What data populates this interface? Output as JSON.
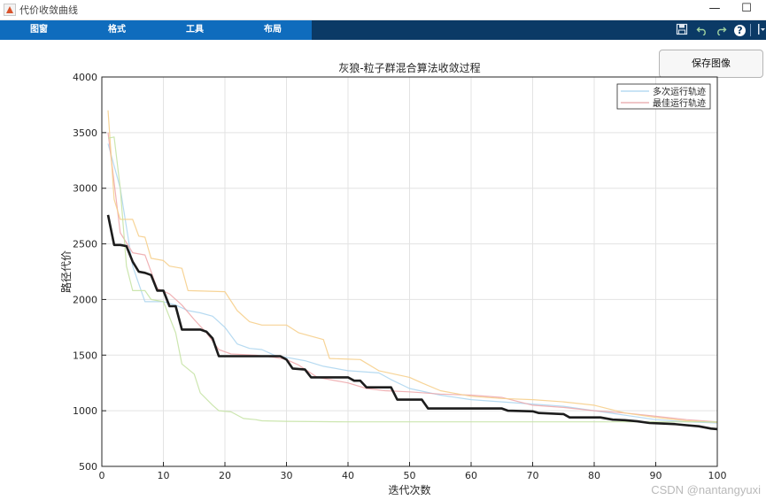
{
  "window": {
    "title": "代价收敛曲线",
    "minimize_glyph": "—",
    "maximize_glyph": "☐"
  },
  "menu": {
    "items": [
      "图窗",
      "格式",
      "工具",
      "布局"
    ]
  },
  "toolbar": {
    "icons": [
      "save-icon",
      "undo-icon",
      "redo-icon",
      "help-icon",
      "dropdown-icon"
    ],
    "help_label": "?"
  },
  "save_button": {
    "label": "保存图像"
  },
  "watermark": "CSDN @nantangyuxi",
  "chart_data": {
    "type": "line",
    "title": "灰狼-粒子群混合算法收敛过程",
    "xlabel": "迭代次数",
    "ylabel": "路径代价",
    "xlim": [
      0,
      100
    ],
    "ylim": [
      500,
      4000
    ],
    "xticks": [
      0,
      10,
      20,
      30,
      40,
      50,
      60,
      70,
      80,
      90,
      100
    ],
    "yticks": [
      500,
      1000,
      1500,
      2000,
      2500,
      3000,
      3500,
      4000
    ],
    "grid": true,
    "legend": {
      "position": "top-right",
      "entries": [
        {
          "label": "多次运行轨迹",
          "color": "#a9d4ef"
        },
        {
          "label": "最佳运行轨迹",
          "color": "#e8a3a8"
        }
      ]
    },
    "series": [
      {
        "color": "#a9d4ef",
        "width": 1.2,
        "opacity": 0.85,
        "points": [
          [
            1,
            3400
          ],
          [
            3,
            3000
          ],
          [
            5,
            2300
          ],
          [
            7,
            1980
          ],
          [
            10,
            1980
          ],
          [
            12,
            1950
          ],
          [
            14,
            1900
          ],
          [
            16,
            1880
          ],
          [
            18,
            1850
          ],
          [
            20,
            1750
          ],
          [
            22,
            1600
          ],
          [
            24,
            1560
          ],
          [
            26,
            1550
          ],
          [
            28,
            1500
          ],
          [
            30,
            1480
          ],
          [
            33,
            1450
          ],
          [
            36,
            1400
          ],
          [
            40,
            1360
          ],
          [
            45,
            1340
          ],
          [
            47,
            1280
          ],
          [
            50,
            1200
          ],
          [
            55,
            1140
          ],
          [
            60,
            1100
          ],
          [
            65,
            1080
          ],
          [
            70,
            1060
          ],
          [
            75,
            1040
          ],
          [
            80,
            1000
          ],
          [
            85,
            960
          ],
          [
            90,
            920
          ],
          [
            95,
            900
          ],
          [
            100,
            890
          ]
        ]
      },
      {
        "color": "#eda5a8",
        "width": 1.2,
        "opacity": 0.85,
        "points": [
          [
            1,
            3500
          ],
          [
            3,
            2600
          ],
          [
            5,
            2420
          ],
          [
            7,
            2400
          ],
          [
            9,
            2100
          ],
          [
            11,
            2050
          ],
          [
            13,
            1950
          ],
          [
            15,
            1820
          ],
          [
            17,
            1700
          ],
          [
            19,
            1550
          ],
          [
            21,
            1510
          ],
          [
            25,
            1500
          ],
          [
            28,
            1480
          ],
          [
            30,
            1460
          ],
          [
            32,
            1410
          ],
          [
            35,
            1300
          ],
          [
            40,
            1250
          ],
          [
            43,
            1200
          ],
          [
            46,
            1180
          ],
          [
            50,
            1170
          ],
          [
            55,
            1150
          ],
          [
            60,
            1140
          ],
          [
            65,
            1120
          ],
          [
            70,
            1050
          ],
          [
            75,
            1030
          ],
          [
            80,
            1000
          ],
          [
            85,
            980
          ],
          [
            90,
            950
          ],
          [
            95,
            920
          ],
          [
            100,
            900
          ]
        ]
      },
      {
        "color": "#f6cf8c",
        "width": 1.2,
        "opacity": 0.9,
        "points": [
          [
            1,
            3700
          ],
          [
            2,
            2900
          ],
          [
            3,
            2720
          ],
          [
            5,
            2720
          ],
          [
            6,
            2570
          ],
          [
            7,
            2560
          ],
          [
            8,
            2370
          ],
          [
            10,
            2350
          ],
          [
            11,
            2300
          ],
          [
            13,
            2280
          ],
          [
            14,
            2080
          ],
          [
            20,
            2070
          ],
          [
            22,
            1900
          ],
          [
            24,
            1800
          ],
          [
            26,
            1770
          ],
          [
            30,
            1770
          ],
          [
            32,
            1700
          ],
          [
            36,
            1640
          ],
          [
            37,
            1470
          ],
          [
            42,
            1460
          ],
          [
            45,
            1360
          ],
          [
            50,
            1300
          ],
          [
            52,
            1250
          ],
          [
            55,
            1180
          ],
          [
            60,
            1130
          ],
          [
            65,
            1110
          ],
          [
            70,
            1100
          ],
          [
            75,
            1080
          ],
          [
            80,
            1050
          ],
          [
            85,
            980
          ],
          [
            90,
            940
          ],
          [
            95,
            910
          ],
          [
            100,
            895
          ]
        ]
      },
      {
        "color": "#c7e3a6",
        "width": 1.2,
        "opacity": 0.9,
        "points": [
          [
            1,
            3450
          ],
          [
            2,
            3460
          ],
          [
            3,
            3000
          ],
          [
            4,
            2300
          ],
          [
            5,
            2080
          ],
          [
            7,
            2080
          ],
          [
            8,
            2000
          ],
          [
            10,
            1980
          ],
          [
            12,
            1700
          ],
          [
            13,
            1420
          ],
          [
            15,
            1330
          ],
          [
            16,
            1160
          ],
          [
            18,
            1050
          ],
          [
            19,
            1000
          ],
          [
            21,
            990
          ],
          [
            23,
            930
          ],
          [
            25,
            920
          ],
          [
            26,
            910
          ],
          [
            30,
            905
          ],
          [
            40,
            900
          ],
          [
            60,
            900
          ],
          [
            80,
            900
          ],
          [
            100,
            900
          ]
        ]
      },
      {
        "color": "#1c1c1c",
        "width": 2.6,
        "opacity": 1,
        "points": [
          [
            1,
            2760
          ],
          [
            2,
            2490
          ],
          [
            3,
            2490
          ],
          [
            4,
            2480
          ],
          [
            5,
            2340
          ],
          [
            6,
            2250
          ],
          [
            7,
            2240
          ],
          [
            8,
            2220
          ],
          [
            9,
            2080
          ],
          [
            10,
            2080
          ],
          [
            11,
            1940
          ],
          [
            12,
            1940
          ],
          [
            13,
            1730
          ],
          [
            16,
            1730
          ],
          [
            17,
            1710
          ],
          [
            18,
            1650
          ],
          [
            19,
            1490
          ],
          [
            29,
            1490
          ],
          [
            30,
            1460
          ],
          [
            31,
            1380
          ],
          [
            33,
            1370
          ],
          [
            34,
            1300
          ],
          [
            40,
            1300
          ],
          [
            41,
            1270
          ],
          [
            42,
            1270
          ],
          [
            43,
            1210
          ],
          [
            47,
            1210
          ],
          [
            48,
            1100
          ],
          [
            52,
            1100
          ],
          [
            53,
            1020
          ],
          [
            65,
            1020
          ],
          [
            66,
            1000
          ],
          [
            70,
            995
          ],
          [
            71,
            980
          ],
          [
            75,
            970
          ],
          [
            76,
            940
          ],
          [
            81,
            940
          ],
          [
            83,
            920
          ],
          [
            85,
            915
          ],
          [
            87,
            905
          ],
          [
            89,
            890
          ],
          [
            91,
            885
          ],
          [
            93,
            880
          ],
          [
            95,
            870
          ],
          [
            97,
            860
          ],
          [
            99,
            840
          ],
          [
            100,
            835
          ]
        ]
      }
    ]
  }
}
